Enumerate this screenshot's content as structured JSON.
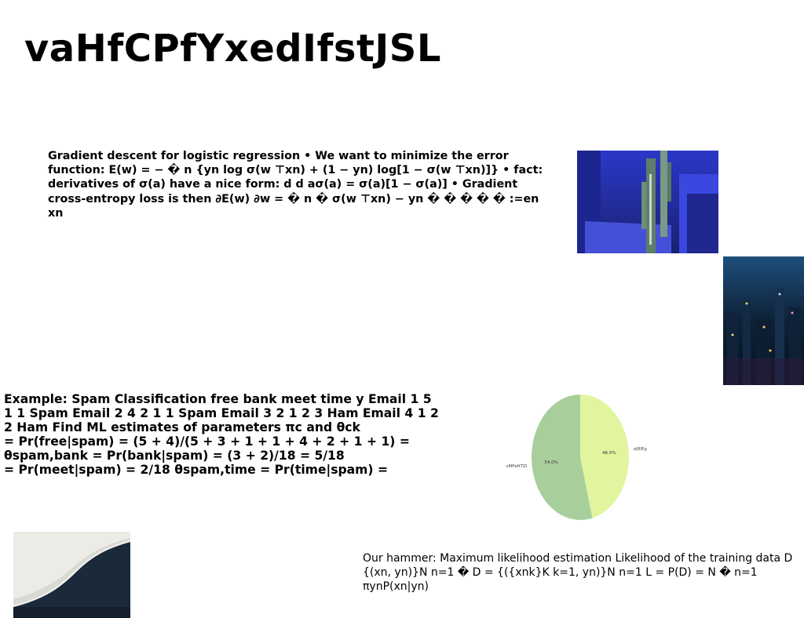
{
  "slide": {
    "title": "vaHfCPfYxedIfstJSL",
    "gradient_text": "Gradient descent for logistic regression • We want to minimize the error function: E(w) = − � n {yn log σ(w ⊤xn) + (1 − yn) log[1 − σ(w ⊤xn)]} • fact: derivatives of σ(a) have a nice form: d d aσ(a) = σ(a)[1 − σ(a)] • Gradient cross-entropy loss is then ∂E(w) ∂w = � n � σ(w ⊤xn) − yn � � � � � :=en xn",
    "spam_lines": [
      "Example: Spam Classification free bank meet time y Email 1 5",
      "1 1 Spam Email 2 4 2 1 1 Spam Email 3 2 1 2 3 Ham Email 4 1 2",
      "2 Ham Find ML estimates of parameters πc and θck",
      "= Pr(free|spam) = (5 + 4)/(5 + 3 + 1 + 1 + 4 + 2 + 1 + 1) =",
      "θspam,bank = Pr(bank|spam) = (3 + 2)/18 = 5/18",
      "= Pr(meet|spam) = 2/18 θspam,time = Pr(time|spam) ="
    ],
    "mle_text": "Our hammer: Maximum likelihood estimation Likelihood of the training data D {(xn, yn)}N n=1 � D = {({xnk}K k=1, yn)}N n=1 L = P(D) = N � n=1 πynP(xn|yn)"
  },
  "images": {
    "cactus": "cactus-photo",
    "city": "city-night-photo",
    "lace": "lace-fabric-photo"
  },
  "chart_data": {
    "type": "pie",
    "title": "",
    "slices": [
      {
        "label": "ojBlEg",
        "value": 46.0,
        "pct_label": "46.0%",
        "color": "#e0f59e"
      },
      {
        "label": "zMFeHTZl",
        "value": 54.0,
        "pct_label": "54.0%",
        "color": "#a8cf9b"
      }
    ],
    "start_angle_deg": 90,
    "direction": "clockwise"
  }
}
